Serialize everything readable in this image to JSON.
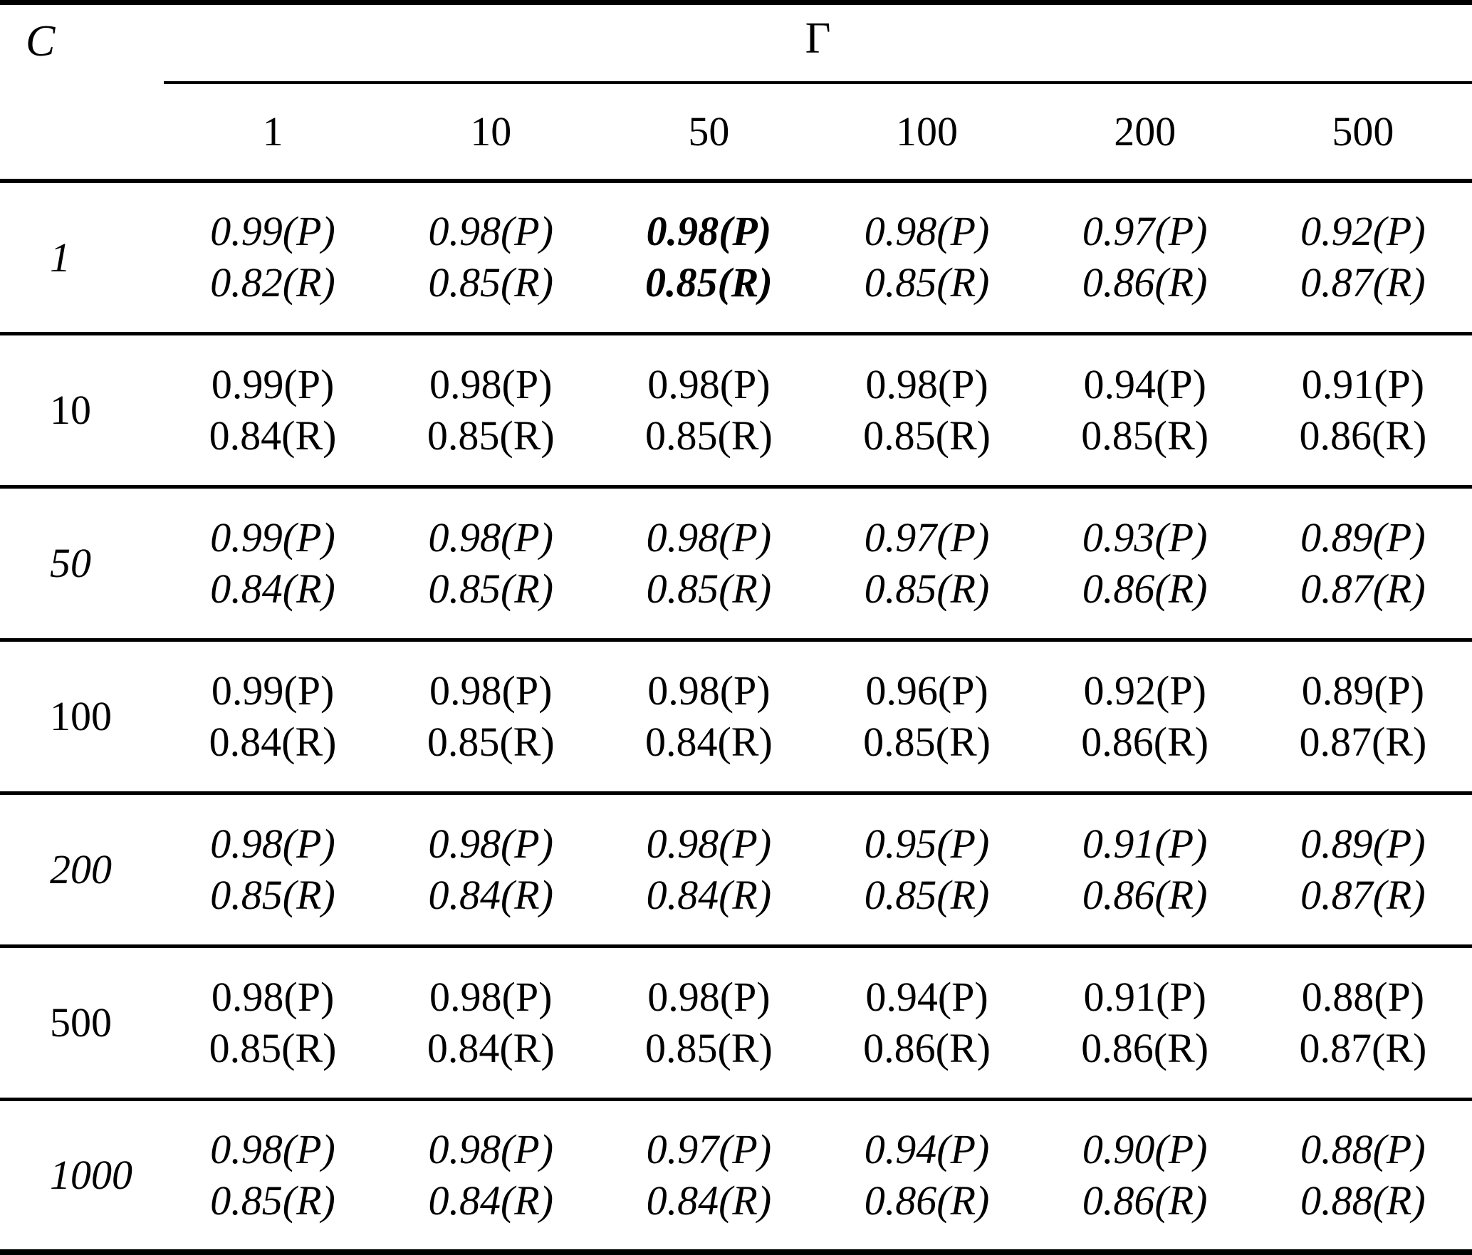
{
  "colors": {
    "text": "#000000",
    "background": "#ffffff"
  },
  "table": {
    "corner_label": "C",
    "group_header": "Γ",
    "columns": [
      "1",
      "10",
      "50",
      "100",
      "200",
      "500"
    ],
    "rows": [
      {
        "label": "1",
        "cells": [
          {
            "p": "0.99(P)",
            "r": "0.82(R)"
          },
          {
            "p": "0.98(P)",
            "r": "0.85(R)"
          },
          {
            "p": "0.98(P)",
            "r": "0.85(R)"
          },
          {
            "p": "0.98(P)",
            "r": "0.85(R)"
          },
          {
            "p": "0.97(P)",
            "r": "0.86(R)"
          },
          {
            "p": "0.92(P)",
            "r": "0.87(R)"
          }
        ]
      },
      {
        "label": "10",
        "cells": [
          {
            "p": "0.99(P)",
            "r": "0.84(R)"
          },
          {
            "p": "0.98(P)",
            "r": "0.85(R)"
          },
          {
            "p": "0.98(P)",
            "r": "0.85(R)"
          },
          {
            "p": "0.98(P)",
            "r": "0.85(R)"
          },
          {
            "p": "0.94(P)",
            "r": "0.85(R)"
          },
          {
            "p": "0.91(P)",
            "r": "0.86(R)"
          }
        ]
      },
      {
        "label": "50",
        "cells": [
          {
            "p": "0.99(P)",
            "r": "0.84(R)"
          },
          {
            "p": "0.98(P)",
            "r": "0.85(R)"
          },
          {
            "p": "0.98(P)",
            "r": "0.85(R)"
          },
          {
            "p": "0.97(P)",
            "r": "0.85(R)"
          },
          {
            "p": "0.93(P)",
            "r": "0.86(R)"
          },
          {
            "p": "0.89(P)",
            "r": "0.87(R)"
          }
        ]
      },
      {
        "label": "100",
        "cells": [
          {
            "p": "0.99(P)",
            "r": "0.84(R)"
          },
          {
            "p": "0.98(P)",
            "r": "0.85(R)"
          },
          {
            "p": "0.98(P)",
            "r": "0.84(R)"
          },
          {
            "p": "0.96(P)",
            "r": "0.85(R)"
          },
          {
            "p": "0.92(P)",
            "r": "0.86(R)"
          },
          {
            "p": "0.89(P)",
            "r": "0.87(R)"
          }
        ]
      },
      {
        "label": "200",
        "cells": [
          {
            "p": "0.98(P)",
            "r": "0.85(R)"
          },
          {
            "p": "0.98(P)",
            "r": "0.84(R)"
          },
          {
            "p": "0.98(P)",
            "r": "0.84(R)"
          },
          {
            "p": "0.95(P)",
            "r": "0.85(R)"
          },
          {
            "p": "0.91(P)",
            "r": "0.86(R)"
          },
          {
            "p": "0.89(P)",
            "r": "0.87(R)"
          }
        ]
      },
      {
        "label": "500",
        "cells": [
          {
            "p": "0.98(P)",
            "r": "0.85(R)"
          },
          {
            "p": "0.98(P)",
            "r": "0.84(R)"
          },
          {
            "p": "0.98(P)",
            "r": "0.85(R)"
          },
          {
            "p": "0.94(P)",
            "r": "0.86(R)"
          },
          {
            "p": "0.91(P)",
            "r": "0.86(R)"
          },
          {
            "p": "0.88(P)",
            "r": "0.87(R)"
          }
        ]
      },
      {
        "label": "1000",
        "cells": [
          {
            "p": "0.98(P)",
            "r": "0.85(R)"
          },
          {
            "p": "0.98(P)",
            "r": "0.84(R)"
          },
          {
            "p": "0.97(P)",
            "r": "0.84(R)"
          },
          {
            "p": "0.94(P)",
            "r": "0.86(R)"
          },
          {
            "p": "0.90(P)",
            "r": "0.86(R)"
          },
          {
            "p": "0.88(P)",
            "r": "0.88(R)"
          }
        ]
      }
    ]
  }
}
